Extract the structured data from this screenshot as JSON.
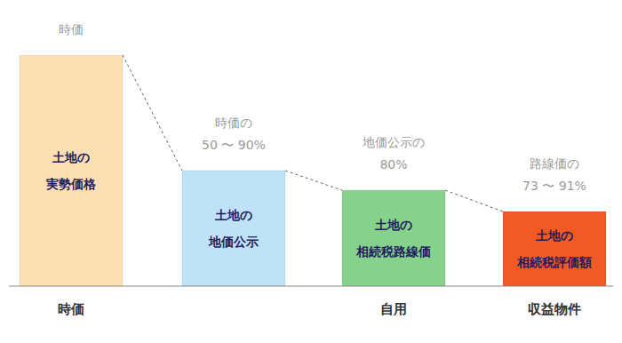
{
  "chart_data": {
    "type": "bar",
    "categories": [
      "時価",
      null,
      "自用",
      "収益物件"
    ],
    "values": [
      100,
      50,
      41.5,
      32.3
    ],
    "colors": [
      "#fddfb4",
      "#bfe2f6",
      "#86d18c",
      "#f15a24"
    ],
    "ylim": [
      0,
      100
    ],
    "tick_labels": "x",
    "grid": false,
    "bar_texts": [
      [
        "土地の",
        "実勢価格"
      ],
      [
        "土地の",
        "地価公示"
      ],
      [
        "土地の",
        "相続税路線価"
      ],
      [
        "土地の",
        "相続税評価額"
      ]
    ],
    "annotations": [
      [
        "時価"
      ],
      [
        "時価の",
        "50 〜 90%"
      ],
      [
        "地価公示の",
        "80%"
      ],
      [
        "路線価の",
        "73 〜 91%"
      ]
    ]
  }
}
